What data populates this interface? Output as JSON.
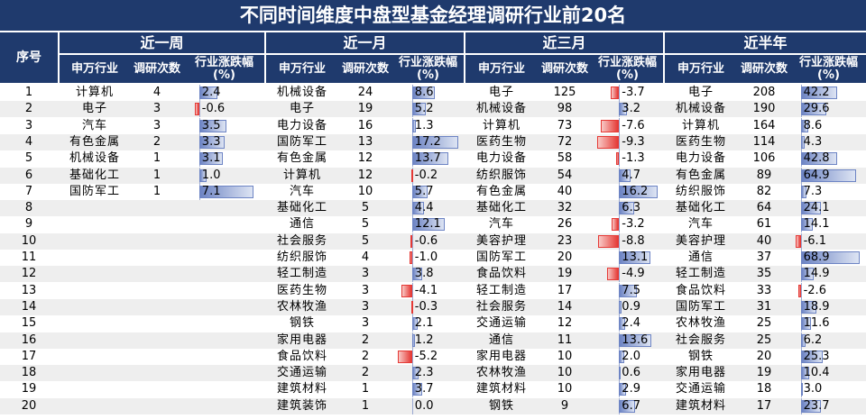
{
  "title": "不同时间维度中盘型基金经理调研行业前20名",
  "seq_header": "序号",
  "col_headers": {
    "industry": "申万行业",
    "count": "调研次数",
    "change": "行业涨跌幅",
    "change_unit": "(%)"
  },
  "colors": {
    "header_bg": "#1f3a6d",
    "positive_bar": "#6d84c4",
    "negative_bar": "#e53935",
    "row_alt": "#eeeeee"
  },
  "row_numbers": [
    "1",
    "2",
    "3",
    "4",
    "5",
    "6",
    "7",
    "8",
    "9",
    "10",
    "11",
    "12",
    "13",
    "14",
    "15",
    "16",
    "17",
    "18",
    "19",
    "20"
  ],
  "groups": [
    {
      "label": "近一周",
      "rows": [
        {
          "industry": "计算机",
          "count": "4",
          "change": "2.4"
        },
        {
          "industry": "电子",
          "count": "3",
          "change": "-0.6"
        },
        {
          "industry": "汽车",
          "count": "3",
          "change": "3.5"
        },
        {
          "industry": "有色金属",
          "count": "2",
          "change": "3.3"
        },
        {
          "industry": "机械设备",
          "count": "1",
          "change": "3.1"
        },
        {
          "industry": "基础化工",
          "count": "1",
          "change": "1.0"
        },
        {
          "industry": "国防军工",
          "count": "1",
          "change": "7.1"
        }
      ]
    },
    {
      "label": "近一月",
      "rows": [
        {
          "industry": "机械设备",
          "count": "24",
          "change": "8.6"
        },
        {
          "industry": "电子",
          "count": "19",
          "change": "5.2"
        },
        {
          "industry": "电力设备",
          "count": "16",
          "change": "1.3"
        },
        {
          "industry": "国防军工",
          "count": "13",
          "change": "17.2"
        },
        {
          "industry": "有色金属",
          "count": "12",
          "change": "13.7"
        },
        {
          "industry": "计算机",
          "count": "12",
          "change": "-0.2"
        },
        {
          "industry": "汽车",
          "count": "10",
          "change": "5.7"
        },
        {
          "industry": "基础化工",
          "count": "5",
          "change": "4.4"
        },
        {
          "industry": "通信",
          "count": "5",
          "change": "12.1"
        },
        {
          "industry": "社会服务",
          "count": "5",
          "change": "-0.6"
        },
        {
          "industry": "纺织服饰",
          "count": "4",
          "change": "-1.0"
        },
        {
          "industry": "轻工制造",
          "count": "3",
          "change": "3.8"
        },
        {
          "industry": "医药生物",
          "count": "3",
          "change": "-4.1"
        },
        {
          "industry": "农林牧渔",
          "count": "3",
          "change": "-0.3"
        },
        {
          "industry": "钢铁",
          "count": "3",
          "change": "2.1"
        },
        {
          "industry": "家用电器",
          "count": "2",
          "change": "1.2"
        },
        {
          "industry": "食品饮料",
          "count": "2",
          "change": "-5.2"
        },
        {
          "industry": "交通运输",
          "count": "2",
          "change": "2.3"
        },
        {
          "industry": "建筑材料",
          "count": "1",
          "change": "3.7"
        },
        {
          "industry": "建筑装饰",
          "count": "1",
          "change": "0.0"
        }
      ]
    },
    {
      "label": "近三月",
      "rows": [
        {
          "industry": "电子",
          "count": "125",
          "change": "-3.7"
        },
        {
          "industry": "机械设备",
          "count": "98",
          "change": "3.2"
        },
        {
          "industry": "计算机",
          "count": "73",
          "change": "-7.6"
        },
        {
          "industry": "医药生物",
          "count": "72",
          "change": "-9.3"
        },
        {
          "industry": "电力设备",
          "count": "58",
          "change": "-1.3"
        },
        {
          "industry": "纺织服饰",
          "count": "54",
          "change": "4.7"
        },
        {
          "industry": "有色金属",
          "count": "40",
          "change": "16.2"
        },
        {
          "industry": "基础化工",
          "count": "32",
          "change": "6.3"
        },
        {
          "industry": "汽车",
          "count": "26",
          "change": "-3.2"
        },
        {
          "industry": "美容护理",
          "count": "23",
          "change": "-8.8"
        },
        {
          "industry": "国防军工",
          "count": "20",
          "change": "13.1"
        },
        {
          "industry": "食品饮料",
          "count": "19",
          "change": "-4.9"
        },
        {
          "industry": "轻工制造",
          "count": "17",
          "change": "7.5"
        },
        {
          "industry": "社会服务",
          "count": "14",
          "change": "0.9"
        },
        {
          "industry": "交通运输",
          "count": "12",
          "change": "2.4"
        },
        {
          "industry": "通信",
          "count": "11",
          "change": "13.6"
        },
        {
          "industry": "家用电器",
          "count": "10",
          "change": "2.0"
        },
        {
          "industry": "农林牧渔",
          "count": "10",
          "change": "0.6"
        },
        {
          "industry": "建筑材料",
          "count": "10",
          "change": "2.9"
        },
        {
          "industry": "钢铁",
          "count": "9",
          "change": "6.7"
        }
      ]
    },
    {
      "label": "近半年",
      "rows": [
        {
          "industry": "电子",
          "count": "208",
          "change": "42.2"
        },
        {
          "industry": "机械设备",
          "count": "190",
          "change": "29.6"
        },
        {
          "industry": "计算机",
          "count": "164",
          "change": "8.6"
        },
        {
          "industry": "医药生物",
          "count": "114",
          "change": "4.3"
        },
        {
          "industry": "电力设备",
          "count": "106",
          "change": "42.8"
        },
        {
          "industry": "有色金属",
          "count": "89",
          "change": "64.9"
        },
        {
          "industry": "纺织服饰",
          "count": "82",
          "change": "7.3"
        },
        {
          "industry": "基础化工",
          "count": "64",
          "change": "24.1"
        },
        {
          "industry": "汽车",
          "count": "61",
          "change": "14.1"
        },
        {
          "industry": "美容护理",
          "count": "40",
          "change": "-6.1"
        },
        {
          "industry": "通信",
          "count": "37",
          "change": "68.9"
        },
        {
          "industry": "轻工制造",
          "count": "35",
          "change": "14.9"
        },
        {
          "industry": "食品饮料",
          "count": "33",
          "change": "-2.6"
        },
        {
          "industry": "国防军工",
          "count": "31",
          "change": "18.9"
        },
        {
          "industry": "农林牧渔",
          "count": "25",
          "change": "11.6"
        },
        {
          "industry": "社会服务",
          "count": "25",
          "change": "6.2"
        },
        {
          "industry": "钢铁",
          "count": "20",
          "change": "25.3"
        },
        {
          "industry": "家用电器",
          "count": "19",
          "change": "10.4"
        },
        {
          "industry": "交通运输",
          "count": "18",
          "change": "3.0"
        },
        {
          "industry": "建筑材料",
          "count": "17",
          "change": "23.7"
        }
      ]
    }
  ]
}
